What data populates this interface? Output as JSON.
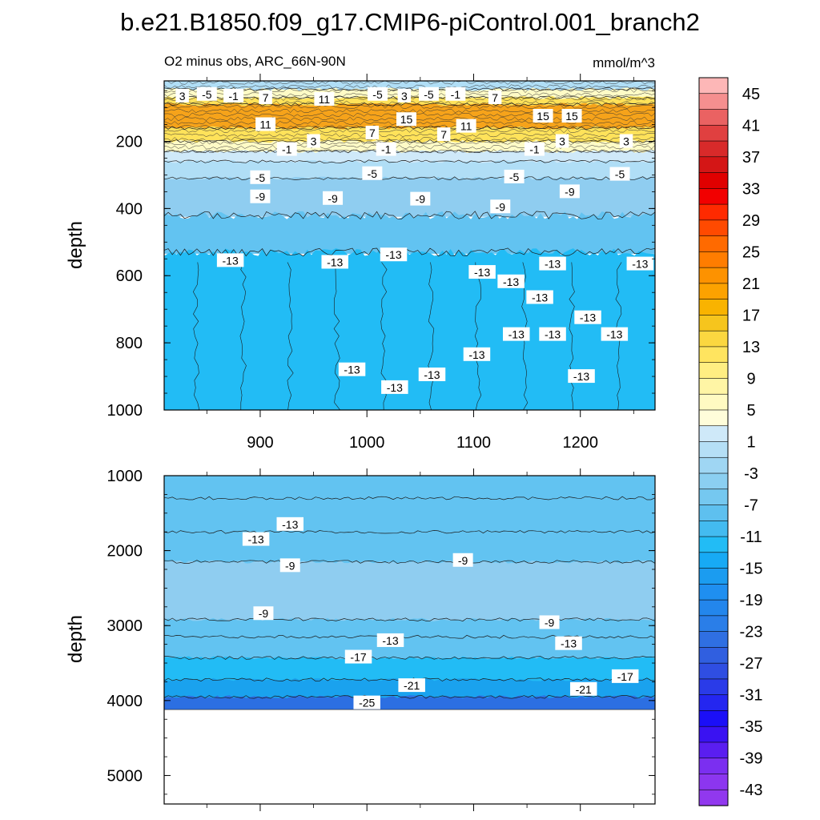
{
  "figure_title": "b.e21.B1850.f09_g17.CMIP6-piControl.001_branch2",
  "colors": {
    "cyan_light": "#cfe9f9",
    "cyan_mid": "#8fcdf0",
    "cyan": "#62c3f1",
    "cyan_dark": "#22bcf5",
    "blue_1": "#1aa2ee",
    "blue_2": "#2185ea",
    "blue_3": "#2c6fe2",
    "yellow_pale": "#fffbc6",
    "yellow": "#ffe25a",
    "orange": "#f6a31a",
    "orange_dark": "#f08a00",
    "white": "#ffffff"
  },
  "chart_data": [
    {
      "type": "heatmap",
      "title": "O2 minus obs, ARC_66N-90N",
      "units": "mmol/m^3",
      "ylabel": "depth",
      "xlabel": "",
      "xlim": [
        810,
        1270
      ],
      "ylim": [
        1000,
        20
      ],
      "xticks": [
        900,
        1000,
        1100,
        1200
      ],
      "yticks": [
        200,
        400,
        600,
        800,
        1000
      ],
      "bands": [
        {
          "depth_top": 20,
          "depth_bottom": 45,
          "value": -3
        },
        {
          "depth_top": 45,
          "depth_bottom": 70,
          "value": 3
        },
        {
          "depth_top": 70,
          "depth_bottom": 90,
          "value": 9
        },
        {
          "depth_top": 90,
          "depth_bottom": 160,
          "value": 15
        },
        {
          "depth_top": 160,
          "depth_bottom": 200,
          "value": 9
        },
        {
          "depth_top": 200,
          "depth_bottom": 230,
          "value": 3
        },
        {
          "depth_top": 230,
          "depth_bottom": 260,
          "value": 1
        },
        {
          "depth_top": 260,
          "depth_bottom": 310,
          "value": -3
        },
        {
          "depth_top": 310,
          "depth_bottom": 420,
          "value": -7
        },
        {
          "depth_top": 420,
          "depth_bottom": 530,
          "value": -11
        },
        {
          "depth_top": 530,
          "depth_bottom": 1000,
          "value": -15
        }
      ],
      "contour_labels": [
        {
          "x": 827,
          "depth": 65,
          "text": "3"
        },
        {
          "x": 850,
          "depth": 60,
          "text": "-5"
        },
        {
          "x": 875,
          "depth": 65,
          "text": "-1"
        },
        {
          "x": 905,
          "depth": 70,
          "text": "7"
        },
        {
          "x": 960,
          "depth": 75,
          "text": "11"
        },
        {
          "x": 1010,
          "depth": 60,
          "text": "-5"
        },
        {
          "x": 1035,
          "depth": 65,
          "text": "3"
        },
        {
          "x": 1058,
          "depth": 60,
          "text": "-5"
        },
        {
          "x": 1083,
          "depth": 60,
          "text": "-1"
        },
        {
          "x": 1120,
          "depth": 70,
          "text": "7"
        },
        {
          "x": 1037,
          "depth": 135,
          "text": "15"
        },
        {
          "x": 1165,
          "depth": 125,
          "text": "15"
        },
        {
          "x": 1192,
          "depth": 125,
          "text": "15"
        },
        {
          "x": 905,
          "depth": 150,
          "text": "11"
        },
        {
          "x": 1093,
          "depth": 155,
          "text": "11"
        },
        {
          "x": 1005,
          "depth": 175,
          "text": "7"
        },
        {
          "x": 1072,
          "depth": 180,
          "text": "7"
        },
        {
          "x": 950,
          "depth": 200,
          "text": "3"
        },
        {
          "x": 1183,
          "depth": 200,
          "text": "3"
        },
        {
          "x": 1243,
          "depth": 200,
          "text": "3"
        },
        {
          "x": 1018,
          "depth": 224,
          "text": "-1"
        },
        {
          "x": 1157,
          "depth": 224,
          "text": "-1"
        },
        {
          "x": 925,
          "depth": 224,
          "text": "-1"
        },
        {
          "x": 1005,
          "depth": 296,
          "text": "-5"
        },
        {
          "x": 1138,
          "depth": 306,
          "text": "-5"
        },
        {
          "x": 1237,
          "depth": 298,
          "text": "-5"
        },
        {
          "x": 900,
          "depth": 308,
          "text": "-5"
        },
        {
          "x": 900,
          "depth": 365,
          "text": "-9"
        },
        {
          "x": 968,
          "depth": 370,
          "text": "-9"
        },
        {
          "x": 1050,
          "depth": 372,
          "text": "-9"
        },
        {
          "x": 1125,
          "depth": 395,
          "text": "-9"
        },
        {
          "x": 1190,
          "depth": 350,
          "text": "-9"
        },
        {
          "x": 872,
          "depth": 555,
          "text": "-13"
        },
        {
          "x": 970,
          "depth": 560,
          "text": "-13"
        },
        {
          "x": 1025,
          "depth": 538,
          "text": "-13"
        },
        {
          "x": 1108,
          "depth": 590,
          "text": "-13"
        },
        {
          "x": 1174,
          "depth": 565,
          "text": "-13"
        },
        {
          "x": 1256,
          "depth": 565,
          "text": "-13"
        },
        {
          "x": 1135,
          "depth": 618,
          "text": "-13"
        },
        {
          "x": 1162,
          "depth": 665,
          "text": "-13"
        },
        {
          "x": 1207,
          "depth": 725,
          "text": "-13"
        },
        {
          "x": 1140,
          "depth": 775,
          "text": "-13"
        },
        {
          "x": 1174,
          "depth": 775,
          "text": "-13"
        },
        {
          "x": 1232,
          "depth": 775,
          "text": "-13"
        },
        {
          "x": 1103,
          "depth": 835,
          "text": "-13"
        },
        {
          "x": 986,
          "depth": 880,
          "text": "-13"
        },
        {
          "x": 1061,
          "depth": 895,
          "text": "-13"
        },
        {
          "x": 1026,
          "depth": 933,
          "text": "-13"
        },
        {
          "x": 1201,
          "depth": 900,
          "text": "-13"
        }
      ]
    },
    {
      "type": "heatmap",
      "ylabel": "depth",
      "xlim": [
        810,
        1270
      ],
      "ylim": [
        5380,
        1000
      ],
      "yticks": [
        1000,
        2000,
        3000,
        4000,
        5000
      ],
      "bottom_depth": 4120,
      "bands": [
        {
          "depth_top": 1000,
          "depth_bottom": 1300,
          "value": -11
        },
        {
          "depth_top": 1300,
          "depth_bottom": 1750,
          "value": -11
        },
        {
          "depth_top": 1750,
          "depth_bottom": 2150,
          "value": -11
        },
        {
          "depth_top": 2150,
          "depth_bottom": 2920,
          "value": -7
        },
        {
          "depth_top": 2920,
          "depth_bottom": 3150,
          "value": -11
        },
        {
          "depth_top": 3150,
          "depth_bottom": 3430,
          "value": -11
        },
        {
          "depth_top": 3430,
          "depth_bottom": 3720,
          "value": -15
        },
        {
          "depth_top": 3720,
          "depth_bottom": 3950,
          "value": -19
        },
        {
          "depth_top": 3950,
          "depth_bottom": 4120,
          "value": -23
        }
      ],
      "contour_labels": [
        {
          "x": 928,
          "depth": 1650,
          "text": "-13"
        },
        {
          "x": 896,
          "depth": 1850,
          "text": "-13"
        },
        {
          "x": 928,
          "depth": 2200,
          "text": "-9"
        },
        {
          "x": 1090,
          "depth": 2130,
          "text": "-9"
        },
        {
          "x": 903,
          "depth": 2840,
          "text": "-9"
        },
        {
          "x": 1171,
          "depth": 2960,
          "text": "-9"
        },
        {
          "x": 1022,
          "depth": 3200,
          "text": "-13"
        },
        {
          "x": 1189,
          "depth": 3240,
          "text": "-13"
        },
        {
          "x": 992,
          "depth": 3420,
          "text": "-17"
        },
        {
          "x": 1242,
          "depth": 3680,
          "text": "-17"
        },
        {
          "x": 1042,
          "depth": 3800,
          "text": "-21"
        },
        {
          "x": 1203,
          "depth": 3850,
          "text": "-21"
        },
        {
          "x": 1000,
          "depth": 4030,
          "text": "-25"
        }
      ]
    },
    {
      "type": "colorbar",
      "levels": [
        "45",
        "41",
        "37",
        "33",
        "29",
        "25",
        "21",
        "17",
        "13",
        "9",
        "5",
        "1",
        "-3",
        "-7",
        "-11",
        "-15",
        "-19",
        "-23",
        "-27",
        "-31",
        "-35",
        "-39",
        "-43"
      ],
      "swatches": [
        "#fdb7b7",
        "#f58f8f",
        "#ea6262",
        "#e04040",
        "#d82a2a",
        "#d41616",
        "#e00000",
        "#f20000",
        "#ff2a00",
        "#ff4a00",
        "#ff6a00",
        "#ff7d00",
        "#fd9200",
        "#fca200",
        "#f9b300",
        "#f6c51d",
        "#fbd740",
        "#ffe45f",
        "#ffee82",
        "#fff5a5",
        "#fffac2",
        "#fffdda",
        "#cfe9f9",
        "#b5dff6",
        "#9fd6f3",
        "#8bcff1",
        "#75c8f0",
        "#5ec0ef",
        "#43bbf0",
        "#22bcf5",
        "#17aaf5",
        "#1b9cf0",
        "#1f8ff0",
        "#2386ec",
        "#2a7ee8",
        "#2f6fe2",
        "#305fe0",
        "#2f4ee2",
        "#2a3be8",
        "#2426f0",
        "#1b0ff7",
        "#3a12f2",
        "#5a1ef0",
        "#7b2ff0",
        "#8c36ef",
        "#9138ee"
      ]
    }
  ]
}
